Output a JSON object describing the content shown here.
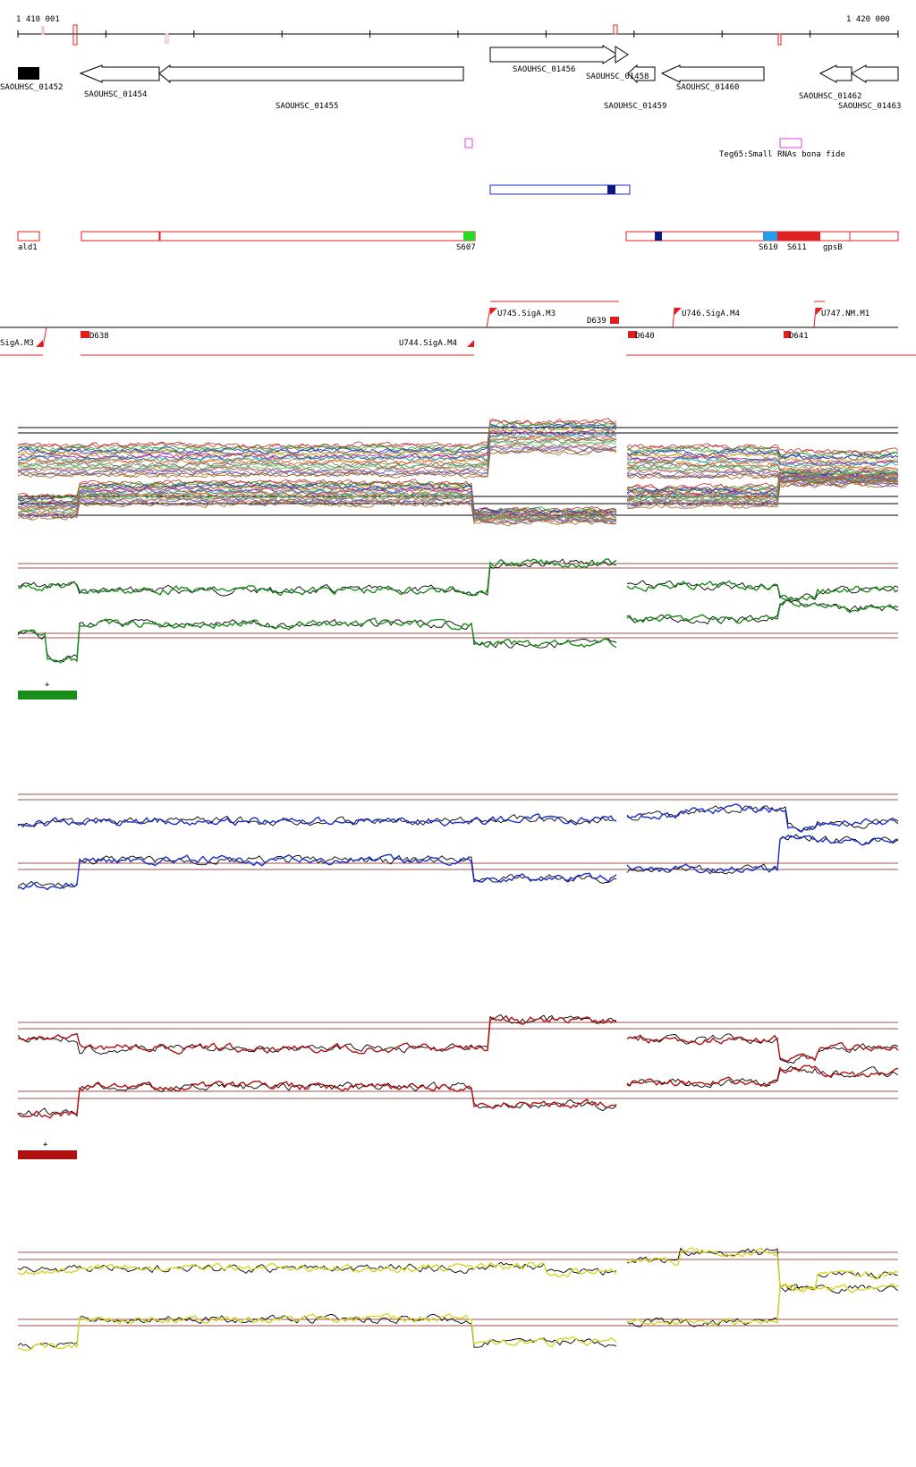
{
  "ruler": {
    "start_label": "1 410 001",
    "end_label": "1 420 000"
  },
  "genes": {
    "g01452": "SAOUHSC_01452",
    "g01454": "SAOUHSC_01454",
    "g01455": "SAOUHSC_01455",
    "g01456": "SAOUHSC_01456",
    "g01458": "SAOUHSC_01458",
    "g01459": "SAOUHSC_01459",
    "g01460": "SAOUHSC_01460",
    "g01462": "SAOUHSC_01462",
    "g01463": "SAOUHSC_01463"
  },
  "small_rna": {
    "label": "Teg65:Small RNAs bona fide"
  },
  "segments": {
    "ald1": "ald1",
    "S607": "S607",
    "S610": "S610",
    "S611": "S611",
    "gpsB": "gpsB"
  },
  "promoters": {
    "SigA_M3_left": "SigA.M3",
    "D638": "D638",
    "U744": "U744.SigA.M4",
    "U745": "U745.SigA.M3",
    "D639": "D639",
    "D640": "D640",
    "U746": "U746.SigA.M4",
    "D641": "D641",
    "U747": "U747.NM.M1"
  },
  "conditions": {
    "green_marker": "+",
    "red_marker": "+"
  },
  "colors": {
    "gene_fill": "#ffffff",
    "segment_red": "#e02020",
    "green": "#1a8c1a",
    "blue": "#1a2fc8",
    "red": "#b01010",
    "yellow": "#d6d62a",
    "threshold": "#a05050"
  }
}
